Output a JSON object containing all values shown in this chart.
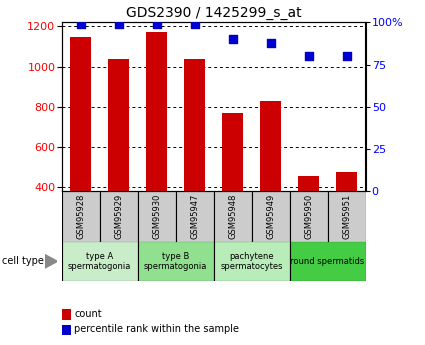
{
  "title": "GDS2390 / 1425299_s_at",
  "samples": [
    "GSM95928",
    "GSM95929",
    "GSM95930",
    "GSM95947",
    "GSM95948",
    "GSM95949",
    "GSM95950",
    "GSM95951"
  ],
  "counts": [
    1148,
    1040,
    1170,
    1040,
    770,
    830,
    455,
    475
  ],
  "percentiles": [
    99,
    99,
    99,
    99,
    90,
    88,
    80,
    80
  ],
  "ylim_left": [
    380,
    1220
  ],
  "ylim_right": [
    0,
    100
  ],
  "yticks_left": [
    400,
    600,
    800,
    1000,
    1200
  ],
  "yticks_right": [
    0,
    25,
    50,
    75,
    100
  ],
  "bar_color": "#cc0000",
  "dot_color": "#0000cc",
  "cell_groups": [
    {
      "label": "type A\nspermatogonia",
      "start": 0,
      "end": 2,
      "color": "#c8edc8"
    },
    {
      "label": "type B\nspermatogonia",
      "start": 2,
      "end": 4,
      "color": "#90e090"
    },
    {
      "label": "pachytene\nspermatocytes",
      "start": 4,
      "end": 6,
      "color": "#b8ecb8"
    },
    {
      "label": "round spermatids",
      "start": 6,
      "end": 8,
      "color": "#44cc44"
    }
  ],
  "cell_type_label": "cell type",
  "legend_count_label": "count",
  "legend_pct_label": "percentile rank within the sample",
  "bar_width": 0.55,
  "dot_size": 40,
  "sample_box_color": "#cccccc",
  "bg_color": "#ffffff",
  "title_fontsize": 10,
  "tick_fontsize": 8,
  "label_fontsize": 7.5
}
